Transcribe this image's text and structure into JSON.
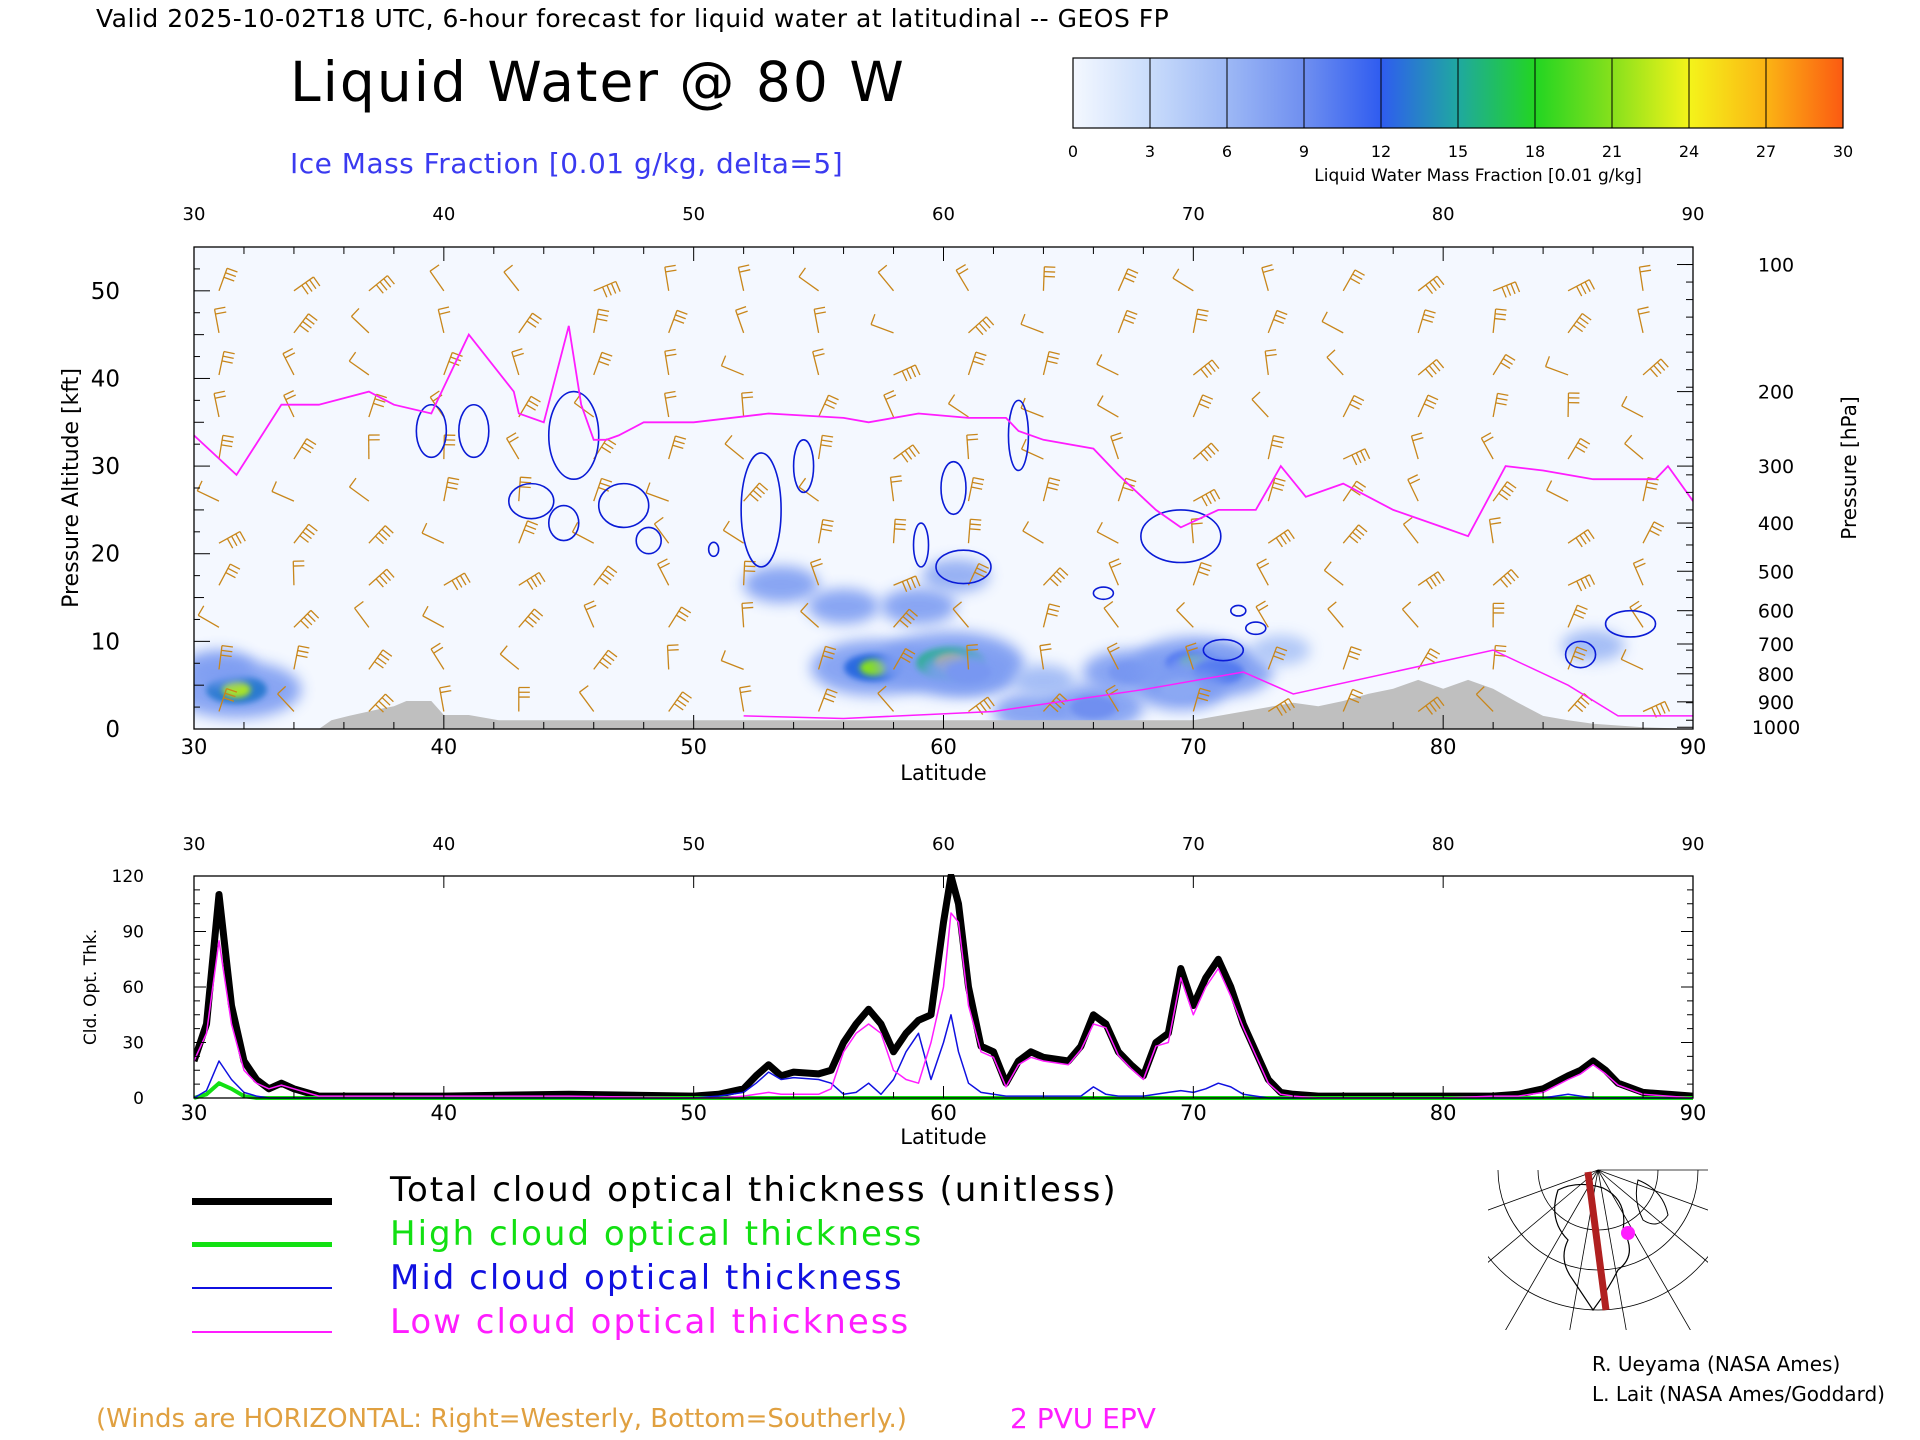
{
  "header": {
    "valid_line": "Valid 2025-10-02T18 UTC, 6-hour forecast for liquid water at latitudinal -- GEOS FP",
    "main_title": "Liquid Water @ 80 W",
    "subtitle": "Ice Mass Fraction [0.01 g/kg, delta=5]"
  },
  "colorbar": {
    "ticks": [
      "0",
      "3",
      "6",
      "9",
      "12",
      "15",
      "18",
      "21",
      "24",
      "27",
      "30"
    ],
    "label": "Liquid Water Mass Fraction [0.01 g/kg]",
    "colors": [
      "#f4f8ff",
      "#c9dcfb",
      "#9db8f5",
      "#6f8ff0",
      "#2f5cf0",
      "#1fa8a0",
      "#22d522",
      "#86e01c",
      "#f4f41a",
      "#fbb414",
      "#fb5a12"
    ]
  },
  "chart_data": [
    {
      "type": "heatmap",
      "title": "Liquid Water @ 80 W",
      "xlabel": "Latitude",
      "ylabel": "Pressure Altitude [kft]",
      "y2label": "Pressure [hPa]",
      "xlim": [
        30,
        90
      ],
      "ylim": [
        0,
        55
      ],
      "x_ticks": [
        30,
        40,
        50,
        60,
        70,
        80,
        90
      ],
      "y_ticks": [
        0,
        10,
        20,
        30,
        40,
        50
      ],
      "y2_ticks": [
        {
          "label": "100",
          "kft": 53
        },
        {
          "label": "200",
          "kft": 38.5
        },
        {
          "label": "300",
          "kft": 30
        },
        {
          "label": "400",
          "kft": 23.5
        },
        {
          "label": "500",
          "kft": 18
        },
        {
          "label": "600",
          "kft": 13.5
        },
        {
          "label": "700",
          "kft": 9.7
        },
        {
          "label": "800",
          "kft": 6.3
        },
        {
          "label": "900",
          "kft": 3.1
        },
        {
          "label": "1000",
          "kft": 0.2
        }
      ],
      "liquid_water_blobs": [
        {
          "lat": 31.7,
          "kft": 4.5,
          "value": 22
        },
        {
          "lat": 31.0,
          "kft": 7.0,
          "value": 8
        },
        {
          "lat": 57.2,
          "kft": 7.0,
          "value": 21
        },
        {
          "lat": 60.3,
          "kft": 7.5,
          "value": 26
        },
        {
          "lat": 61.0,
          "kft": 6.5,
          "value": 14
        },
        {
          "lat": 66.0,
          "kft": 2.5,
          "value": 15
        },
        {
          "lat": 67.5,
          "kft": 6.5,
          "value": 14
        },
        {
          "lat": 70.0,
          "kft": 7.5,
          "value": 19
        },
        {
          "lat": 71.0,
          "kft": 6.5,
          "value": 17
        },
        {
          "lat": 69.5,
          "kft": 4.5,
          "value": 12
        },
        {
          "lat": 53.5,
          "kft": 16.5,
          "value": 9
        },
        {
          "lat": 56.0,
          "kft": 14.0,
          "value": 8
        },
        {
          "lat": 59.0,
          "kft": 14.0,
          "value": 9
        },
        {
          "lat": 60.5,
          "kft": 17.5,
          "value": 7
        },
        {
          "lat": 63.5,
          "kft": 2.0,
          "value": 9
        },
        {
          "lat": 86.0,
          "kft": 9.5,
          "value": 6
        },
        {
          "lat": 73.5,
          "kft": 9.0,
          "value": 5
        },
        {
          "lat": 64.0,
          "kft": 5.5,
          "value": 6
        }
      ],
      "ice_contours": [
        {
          "lat": 39.5,
          "kft": 34.0,
          "dlat": 0.6,
          "dkft": 3.0
        },
        {
          "lat": 41.2,
          "kft": 34.0,
          "dlat": 0.6,
          "dkft": 3.0
        },
        {
          "lat": 45.2,
          "kft": 33.5,
          "dlat": 1.0,
          "dkft": 5.0
        },
        {
          "lat": 43.5,
          "kft": 26.0,
          "dlat": 0.9,
          "dkft": 2.0
        },
        {
          "lat": 44.8,
          "kft": 23.5,
          "dlat": 0.6,
          "dkft": 2.0
        },
        {
          "lat": 47.2,
          "kft": 25.5,
          "dlat": 1.0,
          "dkft": 2.5
        },
        {
          "lat": 48.2,
          "kft": 21.5,
          "dlat": 0.5,
          "dkft": 1.5
        },
        {
          "lat": 52.7,
          "kft": 25.0,
          "dlat": 0.8,
          "dkft": 6.5
        },
        {
          "lat": 54.4,
          "kft": 30.0,
          "dlat": 0.4,
          "dkft": 3.0
        },
        {
          "lat": 50.8,
          "kft": 20.5,
          "dlat": 0.2,
          "dkft": 0.8
        },
        {
          "lat": 60.4,
          "kft": 27.5,
          "dlat": 0.5,
          "dkft": 3.0
        },
        {
          "lat": 63.0,
          "kft": 33.5,
          "dlat": 0.4,
          "dkft": 4.0
        },
        {
          "lat": 60.8,
          "kft": 18.5,
          "dlat": 1.1,
          "dkft": 1.9
        },
        {
          "lat": 59.1,
          "kft": 21.0,
          "dlat": 0.3,
          "dkft": 2.5
        },
        {
          "lat": 69.5,
          "kft": 22.0,
          "dlat": 1.6,
          "dkft": 3.0
        },
        {
          "lat": 66.4,
          "kft": 15.5,
          "dlat": 0.4,
          "dkft": 0.7
        },
        {
          "lat": 71.2,
          "kft": 9.0,
          "dlat": 0.8,
          "dkft": 1.2
        },
        {
          "lat": 71.8,
          "kft": 13.5,
          "dlat": 0.3,
          "dkft": 0.6
        },
        {
          "lat": 72.5,
          "kft": 11.5,
          "dlat": 0.4,
          "dkft": 0.7
        },
        {
          "lat": 85.5,
          "kft": 8.5,
          "dlat": 0.6,
          "dkft": 1.5
        },
        {
          "lat": 87.5,
          "kft": 12.0,
          "dlat": 1.0,
          "dkft": 1.5
        }
      ],
      "epv_2pvu_line": {
        "lat": [
          30,
          31.7,
          33.5,
          35,
          37,
          38,
          39.5,
          41,
          42.8,
          43,
          44,
          45,
          45.5,
          46,
          46.5,
          47,
          48,
          50,
          53,
          56,
          57,
          59,
          61,
          62.5,
          63,
          64,
          66,
          67,
          68.5,
          69.5,
          71,
          72.5,
          73.5,
          74.5,
          76,
          78,
          80,
          81,
          82.5,
          84,
          86,
          88.5,
          89,
          90
        ],
        "kft": [
          33.5,
          29,
          37,
          37,
          38.5,
          37,
          36,
          45,
          38.5,
          36,
          35,
          46,
          37,
          33,
          33,
          33.5,
          35,
          35,
          36,
          35.5,
          35,
          36,
          35.5,
          35.5,
          34,
          33,
          32,
          29,
          25,
          23,
          25,
          25,
          30,
          26.5,
          28,
          25,
          23,
          22,
          30,
          29.5,
          28.5,
          28.5,
          30,
          26
        ]
      },
      "terrain_kft": {
        "lat": [
          30,
          35,
          35.5,
          36.2,
          37.3,
          38,
          38.5,
          39.5,
          40,
          41,
          42.2,
          44,
          48,
          50,
          52,
          54,
          56,
          58,
          60,
          62,
          64,
          66,
          68,
          70,
          71,
          72,
          73,
          74,
          75,
          76,
          77,
          78,
          79,
          80,
          81,
          82,
          83,
          84,
          85,
          86,
          87,
          88,
          89,
          90
        ],
        "kft": [
          0,
          0,
          1,
          1.5,
          2.2,
          2.6,
          3.2,
          3.2,
          1.6,
          1.6,
          1.0,
          1.0,
          1.0,
          1.0,
          1.0,
          1.0,
          1.0,
          1.0,
          1.0,
          1.0,
          1.0,
          1.0,
          1.0,
          1.0,
          1.5,
          2.0,
          2.5,
          3.0,
          2.6,
          3.2,
          4.0,
          4.6,
          5.6,
          4.6,
          5.6,
          4.6,
          3.0,
          1.5,
          1.0,
          0.6,
          0.4,
          0.2,
          0.1,
          0
        ]
      },
      "barb_color": "#c8861a",
      "epv_color": "#ff1dff",
      "ice_contour_color": "#0a1bd6",
      "terrain_color": "#bfbfbf"
    },
    {
      "type": "line",
      "xlabel": "Latitude",
      "ylabel": "Cld. Opt. Thk.",
      "xlim": [
        30,
        90
      ],
      "ylim": [
        0,
        120
      ],
      "x_ticks": [
        30,
        40,
        50,
        60,
        70,
        80,
        90
      ],
      "y_ticks": [
        0,
        30,
        60,
        90,
        120
      ],
      "x": [
        30,
        30.5,
        31,
        31.5,
        32,
        32.5,
        33,
        33.5,
        34,
        35,
        40,
        45,
        50,
        51,
        52,
        52.5,
        53,
        53.5,
        54,
        55,
        55.5,
        56,
        56.5,
        57,
        57.5,
        58,
        58.5,
        59,
        59.5,
        60,
        60.3,
        60.6,
        61,
        61.5,
        62,
        62.5,
        63,
        63.5,
        64,
        65,
        65.5,
        66,
        66.5,
        67,
        67.5,
        68,
        68.5,
        69,
        69.5,
        70,
        70.5,
        71,
        71.5,
        72,
        72.5,
        73,
        73.5,
        74,
        75,
        80,
        82,
        83,
        84,
        85,
        85.5,
        86,
        86.5,
        87,
        88,
        89,
        90
      ],
      "series": [
        {
          "name": "Total cloud optical thickness (unitless)",
          "color": "#000000",
          "width": 7,
          "values": [
            20,
            40,
            110,
            50,
            20,
            10,
            5,
            8,
            5,
            1,
            1,
            2,
            1,
            2,
            5,
            12,
            18,
            12,
            14,
            13,
            15,
            30,
            40,
            48,
            40,
            25,
            35,
            42,
            45,
            95,
            120,
            105,
            60,
            28,
            25,
            8,
            20,
            25,
            22,
            20,
            28,
            45,
            40,
            25,
            18,
            12,
            30,
            35,
            70,
            50,
            65,
            75,
            60,
            40,
            25,
            10,
            3,
            2,
            1,
            1,
            1,
            2,
            5,
            12,
            15,
            20,
            15,
            8,
            3,
            2,
            1
          ]
        },
        {
          "name": "High cloud optical thickness",
          "color": "#12e012",
          "width": 4,
          "values": [
            0,
            2,
            8,
            5,
            1,
            0,
            0,
            0,
            0,
            0,
            0,
            0,
            0,
            0,
            0,
            0,
            0,
            0,
            0,
            0,
            0,
            0,
            0,
            0,
            0,
            0,
            0,
            0,
            0,
            0,
            0,
            0,
            0,
            0,
            0,
            0,
            0,
            0,
            0,
            0,
            0,
            0,
            0,
            0,
            0,
            0,
            0,
            0,
            0,
            0,
            0,
            0,
            0,
            0,
            0,
            0,
            0,
            0,
            0,
            0,
            0,
            0,
            0,
            0,
            0,
            0,
            0,
            0,
            0,
            0,
            0
          ]
        },
        {
          "name": "Mid cloud optical thickness",
          "color": "#1010e0",
          "width": 1.5,
          "values": [
            0,
            4,
            20,
            10,
            3,
            1,
            0,
            0,
            0,
            0,
            0,
            0,
            0,
            1,
            3,
            8,
            14,
            10,
            11,
            10,
            8,
            2,
            3,
            8,
            2,
            10,
            25,
            35,
            10,
            30,
            45,
            25,
            8,
            3,
            2,
            1,
            1,
            1,
            1,
            1,
            1,
            6,
            2,
            1,
            1,
            1,
            2,
            3,
            4,
            3,
            5,
            8,
            6,
            2,
            1,
            0,
            0,
            0,
            0,
            0,
            0,
            0,
            0,
            2,
            1,
            0,
            0,
            0,
            0,
            0,
            0
          ]
        },
        {
          "name": "Low cloud optical thickness",
          "color": "#ff1dff",
          "width": 1.5,
          "values": [
            20,
            35,
            85,
            40,
            15,
            8,
            5,
            7,
            5,
            1,
            1,
            1,
            0,
            0,
            1,
            2,
            3,
            2,
            2,
            2,
            5,
            25,
            35,
            40,
            35,
            15,
            10,
            8,
            30,
            60,
            100,
            95,
            50,
            25,
            22,
            6,
            18,
            22,
            20,
            18,
            26,
            40,
            38,
            23,
            16,
            10,
            28,
            30,
            65,
            45,
            60,
            70,
            55,
            38,
            23,
            8,
            2,
            1,
            0,
            0,
            1,
            1,
            3,
            10,
            13,
            18,
            13,
            7,
            2,
            1,
            0
          ]
        }
      ],
      "legend_position": "bottom-left"
    }
  ],
  "credits": {
    "line1": "R. Ueyama (NASA Ames)",
    "line2": "L. Lait (NASA Ames/Goddard)"
  },
  "footer": {
    "winds_note": "(Winds are HORIZONTAL: Right=Westerly, Bottom=Southerly.)",
    "epv_label": "2 PVU EPV"
  },
  "map_inset": {
    "track_color": "#b02020",
    "marker_color": "#ff1dff"
  }
}
